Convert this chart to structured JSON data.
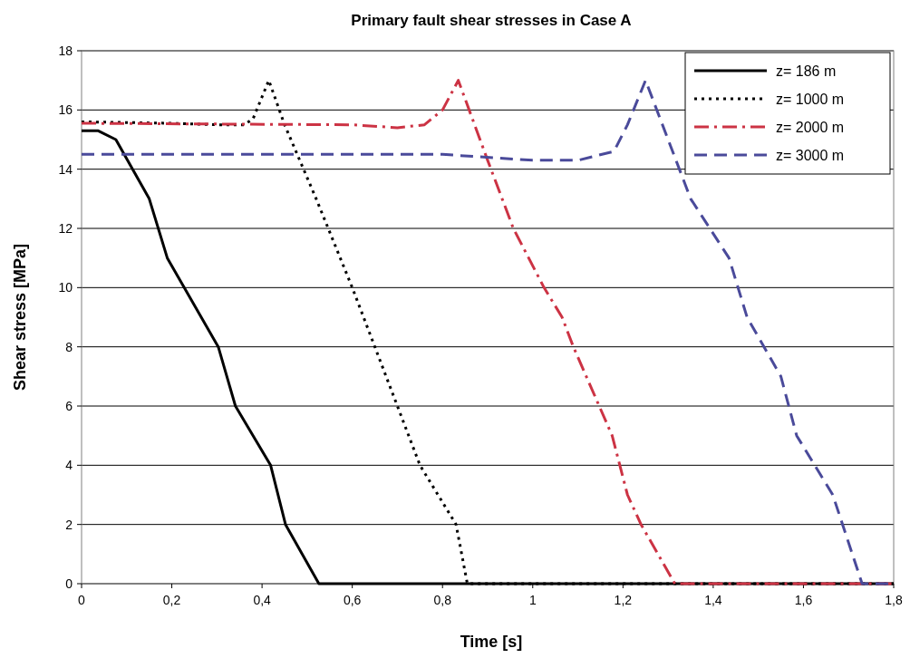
{
  "chart_data": {
    "type": "line",
    "title": "Primary fault shear stresses in Case A",
    "xlabel": "Time [s]",
    "ylabel": "Shear stress [MPa]",
    "xlim": [
      0,
      1.8
    ],
    "ylim": [
      0,
      18
    ],
    "xticks": [
      0,
      {
        "value": 0.2,
        "label": "0,2"
      },
      {
        "value": 0.4,
        "label": "0,4"
      },
      {
        "value": 0.6,
        "label": "0,6"
      },
      {
        "value": 0.8,
        "label": "0,8"
      },
      1,
      {
        "value": 1.2,
        "label": "1,2"
      },
      {
        "value": 1.4,
        "label": "1,4"
      },
      {
        "value": 1.6,
        "label": "1,6"
      },
      {
        "value": 1.8,
        "label": "1,8"
      }
    ],
    "yticks": [
      0,
      2,
      4,
      6,
      8,
      10,
      12,
      14,
      16,
      18
    ],
    "grid": "y",
    "legend": "top right",
    "series": [
      {
        "name": "z= 186 m",
        "color": "#000000",
        "line_style": "solid",
        "x": [
          0,
          0.036,
          0.076,
          0.15,
          0.19,
          0.303,
          0.341,
          0.419,
          0.452,
          0.526,
          1.8
        ],
        "values": [
          15.3,
          15.3,
          15,
          13,
          11,
          8,
          6,
          4,
          2,
          0,
          0
        ]
      },
      {
        "name": "z= 1000 m",
        "color": "#000000",
        "line_style": "dotted",
        "x": [
          0,
          0.2,
          0.3,
          0.36,
          0.38,
          0.415,
          0.45,
          0.52,
          0.6,
          0.65,
          0.7,
          0.75,
          0.83,
          0.855,
          1.8
        ],
        "values": [
          15.6,
          15.55,
          15.5,
          15.5,
          15.7,
          17,
          15.5,
          13,
          10,
          8,
          6,
          4,
          2,
          0,
          0
        ]
      },
      {
        "name": "z= 2000 m",
        "color": "#cc3344",
        "line_style": "dashdot",
        "x": [
          0,
          0.6,
          0.7,
          0.76,
          0.8,
          0.835,
          0.9,
          0.957,
          1.025,
          1.065,
          1.09,
          1.176,
          1.21,
          1.24,
          1.315,
          1.8
        ],
        "values": [
          15.55,
          15.5,
          15.4,
          15.5,
          16,
          17,
          14.3,
          12,
          10,
          9,
          8,
          5,
          3,
          2,
          0,
          0
        ]
      },
      {
        "name": "z= 3000 m",
        "color": "#4a4a9a",
        "line_style": "dashed",
        "x": [
          0,
          0.8,
          1,
          1.1,
          1.18,
          1.21,
          1.25,
          1.3,
          1.35,
          1.435,
          1.475,
          1.55,
          1.585,
          1.665,
          1.73,
          1.8
        ],
        "values": [
          14.5,
          14.5,
          14.3,
          14.3,
          14.6,
          15.5,
          17,
          15,
          13,
          11,
          9,
          7,
          5,
          3,
          0,
          0
        ]
      }
    ]
  }
}
